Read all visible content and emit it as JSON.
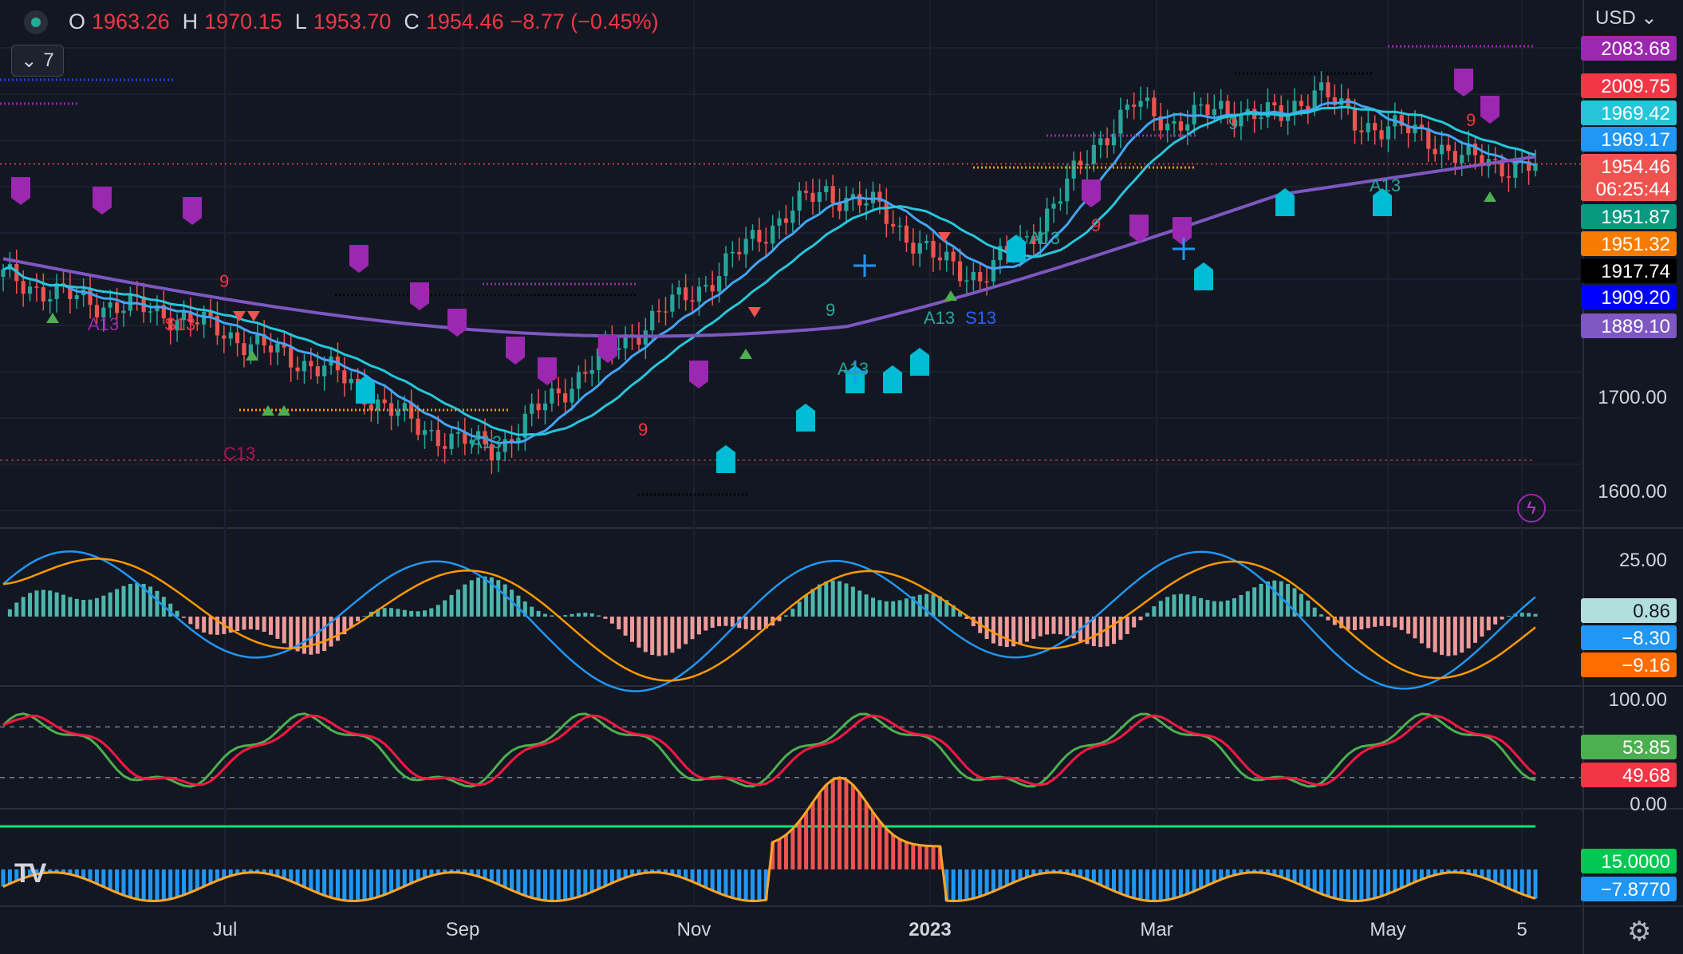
{
  "header": {
    "open_label": "O",
    "open": "1963.26",
    "high_label": "H",
    "high": "1970.15",
    "low_label": "L",
    "low": "1953.70",
    "close_label": "C",
    "close": "1954.46",
    "change": "−8.77 (−0.45%)"
  },
  "indicators_toggle": {
    "icon": "chevron-down-icon",
    "count": "7"
  },
  "currency": "USD",
  "colors": {
    "background": "#131722",
    "up": "#26a69a",
    "down": "#ef5350",
    "ma_fast": "#42a5f5",
    "ma_mid": "#26c6da",
    "ma_slow": "#7e57c2",
    "macd": "#2196f3",
    "signal": "#ff9800",
    "stoch_k": "#4caf50",
    "stoch_d": "#ff1744",
    "osc_line": "#ffa726",
    "threshold": "#00e676",
    "marker_purple": "#9c27b0",
    "marker_cyan": "#00bcd4"
  },
  "chart_data": [
    {
      "type": "candlestick",
      "pane": "price",
      "x_tick_labels": [
        "Jul",
        "Sep",
        "Nov",
        "2023",
        "Mar",
        "May",
        "5"
      ],
      "y_tick_labels": [
        "1700.00",
        "1600.00"
      ],
      "ylim": [
        1590,
        2100
      ],
      "moving_averages": [
        "fast",
        "mid",
        "slow"
      ],
      "price_labels": [
        {
          "value": "2083.68",
          "color": "#9c27b0"
        },
        {
          "value": "2009.75",
          "color": "#f23645"
        },
        {
          "value": "1969.42",
          "color": "#26c6da"
        },
        {
          "value": "1969.17",
          "color": "#2196f3"
        },
        {
          "value": "1954.46",
          "color": "#ef5350"
        },
        {
          "value": "06:25:44",
          "color": "#ef5350"
        },
        {
          "value": "1951.87",
          "color": "#089981"
        },
        {
          "value": "1951.32",
          "color": "#f57c00"
        },
        {
          "value": "1917.74",
          "color": "#000000"
        },
        {
          "value": "1909.20",
          "color": "#0000ff"
        },
        {
          "value": "1889.10",
          "color": "#7e57c2"
        }
      ],
      "annotations": [
        "A13",
        "S13",
        "C13",
        "A13",
        "9",
        "9",
        "9",
        "9",
        "A13",
        "A13",
        "A13",
        "9",
        "A13",
        "S13",
        "9"
      ]
    },
    {
      "type": "line",
      "pane": "macd",
      "y_tick_labels": [
        "25.00"
      ],
      "series_values": [
        {
          "value": "0.86",
          "color": "#b2dfdb"
        },
        {
          "value": "−8.30",
          "color": "#2196f3"
        },
        {
          "value": "−9.16",
          "color": "#ff6d00"
        }
      ]
    },
    {
      "type": "line",
      "pane": "stochastic",
      "ylim": [
        0,
        100
      ],
      "y_tick_labels": [
        "100.00",
        "0.00"
      ],
      "bands": [
        80,
        20
      ],
      "series_values": [
        {
          "value": "53.85",
          "color": "#4caf50"
        },
        {
          "value": "49.68",
          "color": "#f23645"
        }
      ]
    },
    {
      "type": "bar",
      "pane": "oscillator",
      "threshold": 15,
      "series_values": [
        {
          "value": "15.0000",
          "color": "#00c853"
        },
        {
          "value": "−7.8770",
          "color": "#2196f3"
        }
      ]
    }
  ],
  "footer": {
    "logo": "TV"
  }
}
